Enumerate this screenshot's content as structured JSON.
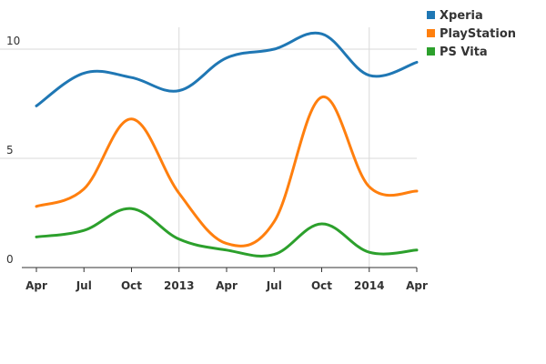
{
  "chart_data": {
    "type": "line",
    "title": "",
    "xlabel": "",
    "ylabel": "",
    "x": [
      "Apr",
      "Jul",
      "Oct",
      "2013",
      "Apr",
      "Jul",
      "Oct",
      "2014",
      "Apr"
    ],
    "ylim": [
      0,
      11
    ],
    "yticks": [
      0,
      5,
      10
    ],
    "grid": "vertical and horizontal",
    "legend_position": "top-right",
    "series": [
      {
        "name": "Xperia",
        "color": "#1f77b4",
        "values": [
          7.4,
          8.9,
          8.7,
          8.1,
          9.6,
          10.0,
          10.7,
          8.8,
          9.4
        ]
      },
      {
        "name": "PlayStation",
        "color": "#ff7f0e",
        "values": [
          2.8,
          3.6,
          6.8,
          3.4,
          1.1,
          2.1,
          7.8,
          3.7,
          3.5
        ]
      },
      {
        "name": "PS Vita",
        "color": "#2ca02c",
        "values": [
          1.4,
          1.7,
          2.7,
          1.3,
          0.8,
          0.6,
          2.0,
          0.7,
          0.8
        ]
      }
    ]
  }
}
